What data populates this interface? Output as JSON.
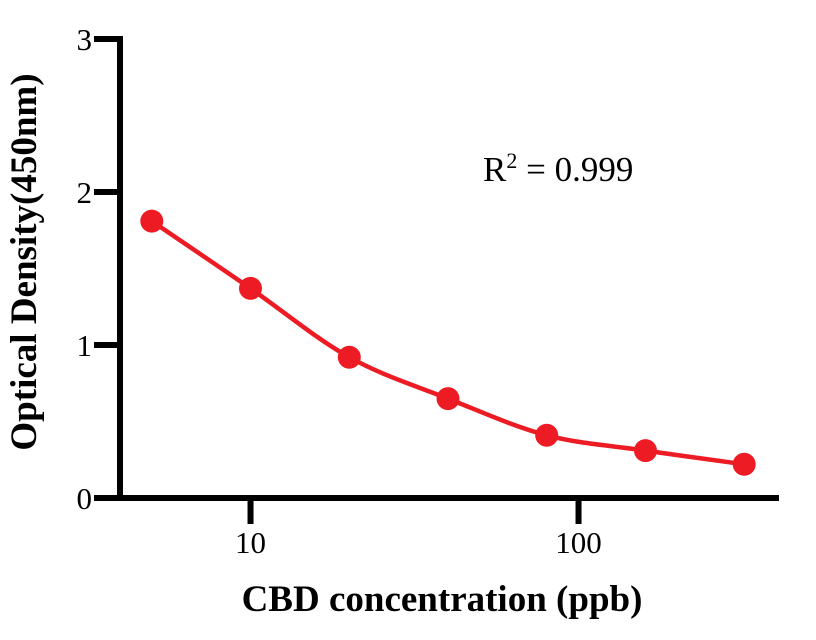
{
  "chart": {
    "ylabel": "Optical Density(450nm)",
    "xlabel": "CBD concentration (ppb)",
    "annotation": {
      "base": "R",
      "sup": "2",
      "rest": " = 0.999"
    }
  },
  "chart_data": {
    "type": "scatter",
    "subtype": "line-with-markers",
    "x_scale": "log",
    "x": [
      5,
      10,
      20,
      40,
      80,
      160,
      320
    ],
    "y": [
      1.81,
      1.37,
      0.92,
      0.65,
      0.41,
      0.31,
      0.22
    ],
    "title": "",
    "xlabel": "CBD concentration (ppb)",
    "ylabel": "Optical Density(450nm)",
    "annotation": "R² = 0.999",
    "xlim": [
      4,
      400
    ],
    "ylim": [
      0,
      3
    ],
    "x_ticks": [
      10,
      100
    ],
    "y_ticks": [
      0,
      1,
      2,
      3
    ],
    "grid": false,
    "legend": "none",
    "series_color": "#ED1C24",
    "axis_color": "#000000",
    "marker": "circle",
    "line_style": "smooth"
  }
}
